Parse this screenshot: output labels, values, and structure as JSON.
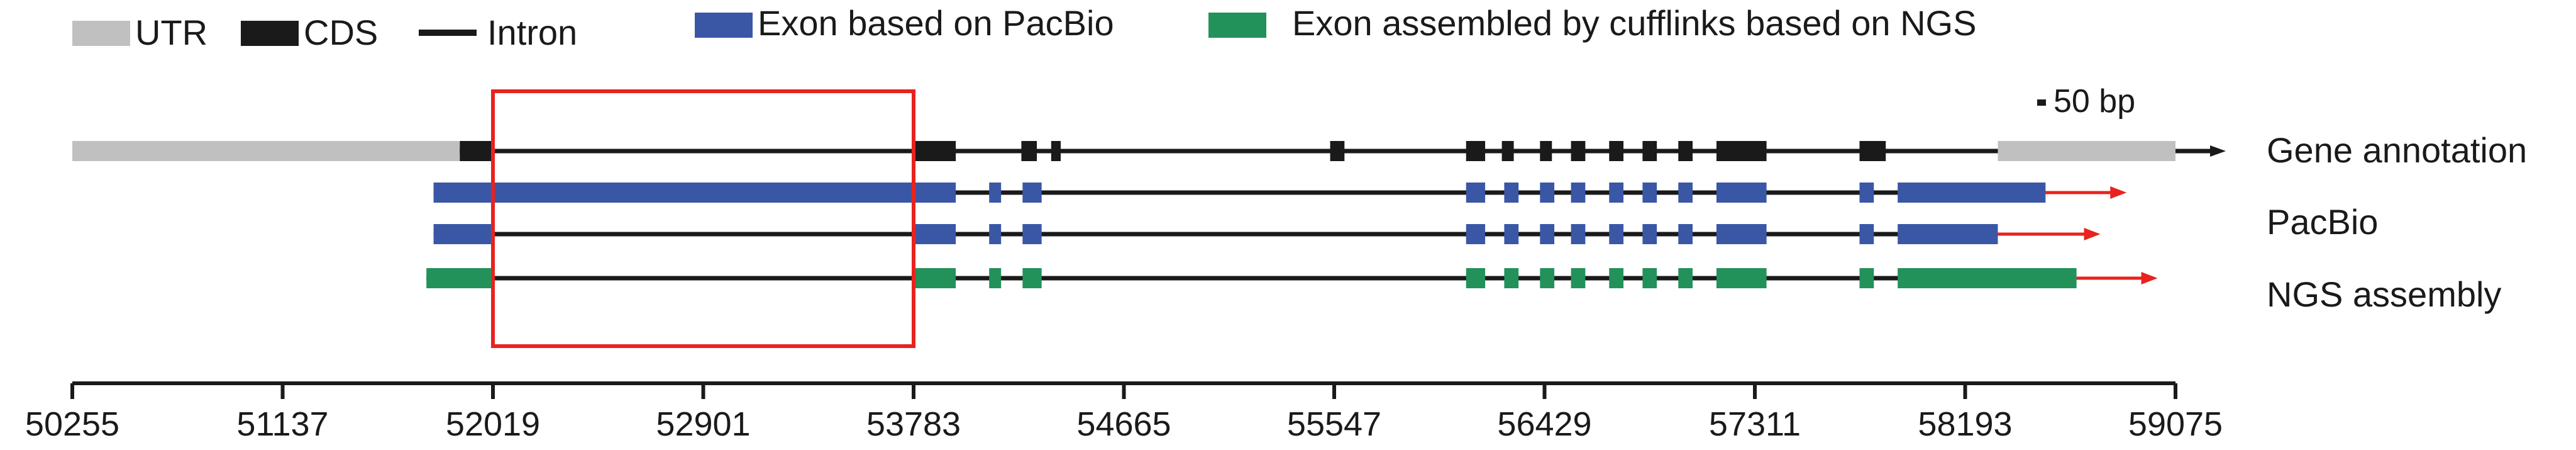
{
  "legend": {
    "utr": "UTR",
    "cds": "CDS",
    "intron": "Intron",
    "pacbio_exon": "Exon based on PacBio",
    "ngs_exon": "Exon assembled by cufflinks based on NGS"
  },
  "scale_bar": "50 bp",
  "tracks": {
    "annotation": "Gene annotation",
    "pacbio": "PacBio",
    "ngs": "NGS assembly"
  },
  "axis": {
    "ticks": [
      "50255",
      "51137",
      "52019",
      "52901",
      "53783",
      "54665",
      "55547",
      "56429",
      "57311",
      "58193",
      "59075"
    ],
    "range": [
      50255,
      59075
    ]
  },
  "colors": {
    "utr": "#c0c0c0",
    "cds": "#1a1a1a",
    "pacbio": "#3a57a6",
    "ngs": "#23915a",
    "arrow": "#e8231f",
    "highlight": "#e8231f"
  },
  "structure": {
    "annotation": {
      "span": [
        50255,
        59075
      ],
      "utr": [
        [
          50255,
          51880
        ],
        [
          58330,
          59075
        ]
      ],
      "cds": [
        [
          51880,
          52019
        ],
        [
          53783,
          53960
        ],
        [
          54235,
          54300
        ],
        [
          54360,
          54400
        ],
        [
          55530,
          55590
        ],
        [
          56100,
          56180
        ],
        [
          56250,
          56300
        ],
        [
          56410,
          56460
        ],
        [
          56540,
          56600
        ],
        [
          56700,
          56760
        ],
        [
          56840,
          56900
        ],
        [
          56990,
          57050
        ],
        [
          57150,
          57360
        ],
        [
          57750,
          57860
        ]
      ]
    },
    "pacbio_1": {
      "span": [
        51770,
        58870
      ],
      "exons": [
        [
          51770,
          53960
        ],
        [
          54100,
          54150
        ],
        [
          54240,
          54320
        ],
        [
          56100,
          56180
        ],
        [
          56260,
          56320
        ],
        [
          56410,
          56470
        ],
        [
          56540,
          56600
        ],
        [
          56700,
          56760
        ],
        [
          56840,
          56900
        ],
        [
          56990,
          57050
        ],
        [
          57150,
          57360
        ],
        [
          57750,
          57810
        ],
        [
          57910,
          58530
        ]
      ]
    },
    "pacbio_2": {
      "span": [
        51770,
        58760
      ],
      "exons": [
        [
          51770,
          52019
        ],
        [
          53783,
          53960
        ],
        [
          54100,
          54150
        ],
        [
          54240,
          54320
        ],
        [
          56100,
          56180
        ],
        [
          56260,
          56320
        ],
        [
          56410,
          56470
        ],
        [
          56540,
          56600
        ],
        [
          56700,
          56760
        ],
        [
          56840,
          56900
        ],
        [
          56990,
          57050
        ],
        [
          57150,
          57360
        ],
        [
          57750,
          57810
        ],
        [
          57910,
          58330
        ]
      ]
    },
    "ngs": {
      "span": [
        51740,
        59000
      ],
      "exons": [
        [
          51740,
          52019
        ],
        [
          53783,
          53960
        ],
        [
          54100,
          54150
        ],
        [
          54240,
          54320
        ],
        [
          56100,
          56180
        ],
        [
          56260,
          56320
        ],
        [
          56410,
          56470
        ],
        [
          56540,
          56600
        ],
        [
          56700,
          56760
        ],
        [
          56840,
          56900
        ],
        [
          56990,
          57050
        ],
        [
          57150,
          57360
        ],
        [
          57750,
          57810
        ],
        [
          57910,
          58660
        ]
      ]
    },
    "highlight_region": [
      52019,
      53783
    ]
  }
}
